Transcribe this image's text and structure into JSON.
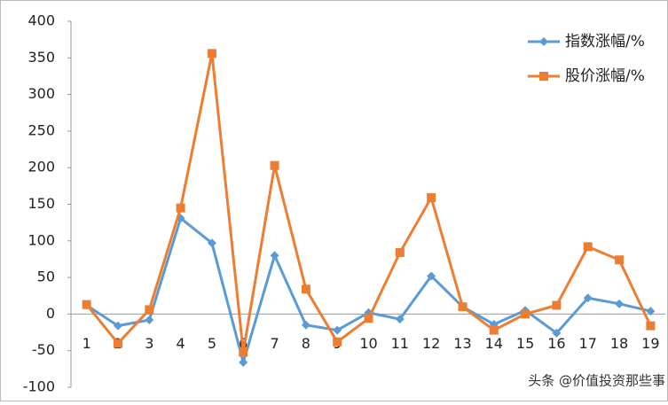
{
  "chart_data": {
    "type": "line",
    "categories": [
      "1",
      "2",
      "3",
      "4",
      "5",
      "6",
      "7",
      "8",
      "9",
      "10",
      "11",
      "12",
      "13",
      "14",
      "15",
      "16",
      "17",
      "18",
      "19"
    ],
    "series": [
      {
        "name": "指数涨幅/%",
        "color": "#5b9bd5",
        "marker": "diamond",
        "values": [
          12,
          -16,
          -8,
          131,
          97,
          -66,
          80,
          -15,
          -22,
          2,
          -7,
          52,
          10,
          -14,
          5,
          -26,
          22,
          14,
          4
        ]
      },
      {
        "name": "股价涨幅/%",
        "color": "#ed7d31",
        "marker": "square",
        "values": [
          13,
          -40,
          6,
          145,
          356,
          -52,
          203,
          34,
          -38,
          -6,
          84,
          159,
          10,
          -22,
          0,
          12,
          92,
          74,
          -16
        ]
      }
    ],
    "ylim": [
      -100,
      400
    ],
    "yticks": [
      -100,
      -50,
      0,
      50,
      100,
      150,
      200,
      250,
      300,
      350,
      400
    ],
    "grid": false,
    "legend": "top-right",
    "watermark": "头条 @价值投资那些事"
  }
}
